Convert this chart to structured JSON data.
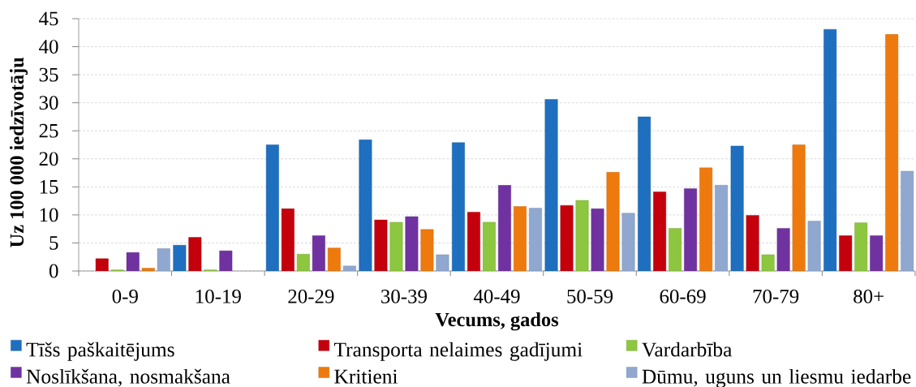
{
  "chart_data": {
    "type": "bar",
    "xlabel": "Vecums, gados",
    "ylabel": "Uz 100 000 iedzīvotāju",
    "categories": [
      "0-9",
      "10-19",
      "20-29",
      "30-39",
      "40-49",
      "50-59",
      "60-69",
      "70-79",
      "80+"
    ],
    "series": [
      {
        "name": "Tīšs paškaitējums",
        "color": "#1e6fbf",
        "values": [
          0,
          4.6,
          22.5,
          23.4,
          22.9,
          30.6,
          27.5,
          22.3,
          43.1
        ]
      },
      {
        "name": "Transporta nelaimes gadījumi",
        "color": "#c4000c",
        "values": [
          2.2,
          6.0,
          11.1,
          9.1,
          10.5,
          11.7,
          14.1,
          9.9,
          6.3
        ]
      },
      {
        "name": "Vardarbība",
        "color": "#8dc63f",
        "values": [
          0.2,
          0.2,
          3.0,
          8.7,
          8.7,
          12.6,
          7.6,
          2.9,
          8.6
        ]
      },
      {
        "name": "Noslīkšana, nosmakšana",
        "color": "#7032a0",
        "values": [
          3.3,
          3.6,
          6.3,
          9.7,
          15.3,
          11.1,
          14.7,
          7.6,
          6.3
        ]
      },
      {
        "name": "Kritieni",
        "color": "#ee7a0e",
        "values": [
          0.5,
          0,
          4.1,
          7.4,
          11.5,
          17.6,
          18.4,
          22.5,
          42.2
        ]
      },
      {
        "name": "Dūmu, uguns un liesmu iedarbe",
        "color": "#90a8d0",
        "values": [
          4.0,
          0,
          0.9,
          2.9,
          11.2,
          10.3,
          15.3,
          8.9,
          17.8
        ]
      }
    ],
    "ylim": [
      0,
      45
    ],
    "yticks": [
      0,
      5,
      10,
      15,
      20,
      25,
      30,
      35,
      40,
      45
    ],
    "grid": "y",
    "legend": "bottom"
  }
}
